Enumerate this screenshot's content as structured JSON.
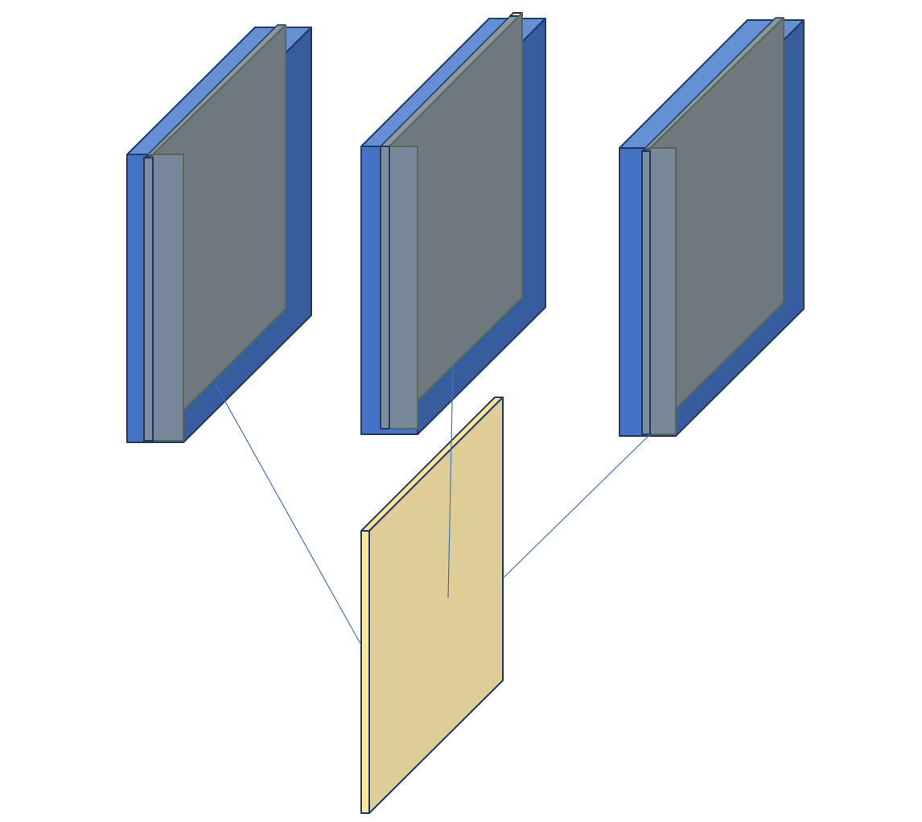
{
  "diagram": {
    "blocks": [
      {
        "name": "left",
        "kind": "feature-map-stack"
      },
      {
        "name": "middle",
        "kind": "feature-map-stack"
      },
      {
        "name": "right",
        "kind": "feature-map-stack"
      }
    ],
    "output": {
      "name": "output",
      "kind": "output-plane"
    },
    "connections": [
      {
        "from": "left",
        "to": "output"
      },
      {
        "from": "middle",
        "to": "output"
      },
      {
        "from": "right",
        "to": "output"
      }
    ]
  },
  "colors": {
    "block_front": "#4472C4",
    "block_top": "#6590D5",
    "block_side": "#375D9E",
    "outline": "#1F3864",
    "grey_face": "#6E787E",
    "grey_top": "#8C98A0",
    "grey_edge": "#5A6654",
    "grey_front": "#78889A",
    "thin_front": "#7D8D9B",
    "tan_face": "#DECD96",
    "tan_edge": "#FFE699",
    "connector": "#4472C4"
  }
}
